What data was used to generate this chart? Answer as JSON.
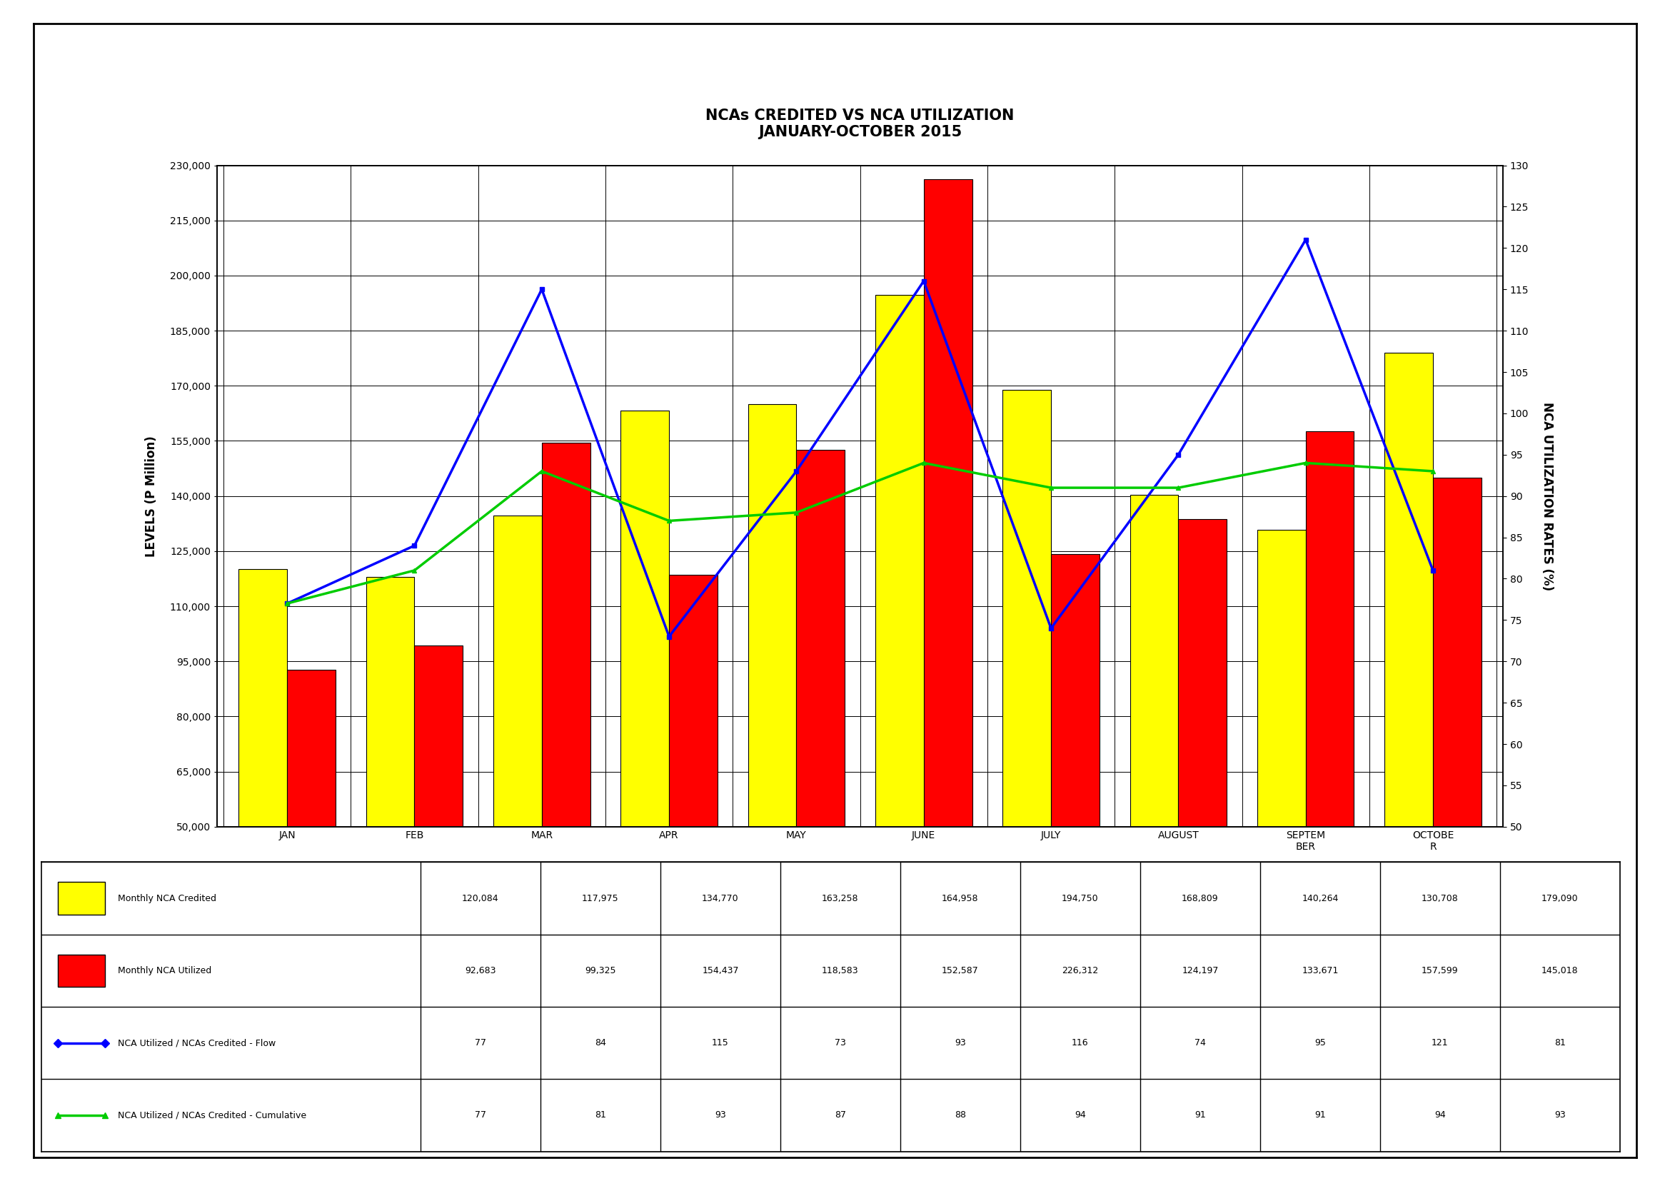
{
  "title_line1": "NCAs CREDITED VS NCA UTILIZATION",
  "title_line2": "JANUARY-OCTOBER 2015",
  "months": [
    "JAN",
    "FEB",
    "MAR",
    "APR",
    "MAY",
    "JUNE",
    "JULY",
    "AUGUST",
    "SEPTEM\nBER",
    "OCTOBE\nR"
  ],
  "monthly_nca_credited": [
    120084,
    117975,
    134770,
    163258,
    164958,
    194750,
    168809,
    140264,
    130708,
    179090
  ],
  "monthly_nca_utilized": [
    92683,
    99325,
    154437,
    118583,
    152587,
    226312,
    124197,
    133671,
    157599,
    145018
  ],
  "flow_rate": [
    77,
    84,
    115,
    73,
    93,
    116,
    74,
    95,
    121,
    81
  ],
  "cumulative_rate": [
    77,
    81,
    93,
    87,
    88,
    94,
    91,
    91,
    94,
    93
  ],
  "bar_color_credited": "#FFFF00",
  "bar_color_utilized": "#FF0000",
  "line_color_flow": "#0000FF",
  "line_color_cumulative": "#00CC00",
  "ylabel_left": "LEVELS (P Million)",
  "ylabel_right": "NCA UTILIZATION RATES (%)",
  "ylim_left": [
    50000,
    230000
  ],
  "ylim_right": [
    50,
    130
  ],
  "yticks_left": [
    50000,
    65000,
    80000,
    95000,
    110000,
    125000,
    140000,
    155000,
    170000,
    185000,
    200000,
    215000,
    230000
  ],
  "yticks_right": [
    50,
    55,
    60,
    65,
    70,
    75,
    80,
    85,
    90,
    95,
    100,
    105,
    110,
    115,
    120,
    125,
    130
  ],
  "table_row1_label": "Monthly NCA Credited",
  "table_row2_label": "Monthly NCA Utilized",
  "table_row3_label": "NCA Utilized / NCAs Credited - Flow",
  "table_row4_label": "NCA Utilized / NCAs Credited - Cumulative",
  "background_color": "#FFFFFF",
  "outer_background": "#FFFFFF"
}
